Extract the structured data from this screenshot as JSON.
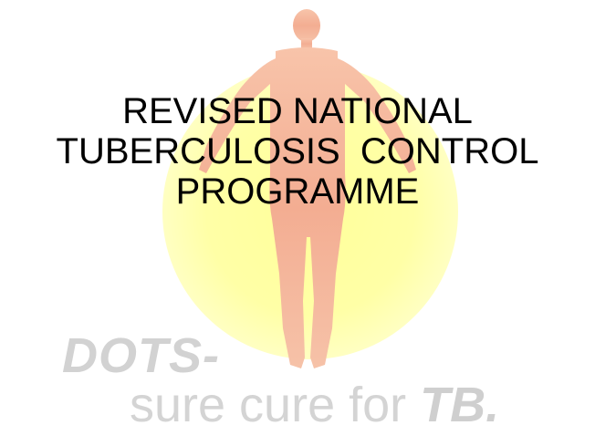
{
  "slide": {
    "title_lines": [
      "REVISED NATIONAL",
      "TUBERCULOSIS  CONTROL",
      "PROGRAMME"
    ],
    "logo": {
      "brand": "DOTS-",
      "tagline_prefix": "sure cure for ",
      "tagline_emphasis": "TB."
    },
    "colors": {
      "sun": "#ffff9a",
      "figure": "#f4b49a",
      "logo_text": "#d2d2d2"
    }
  }
}
